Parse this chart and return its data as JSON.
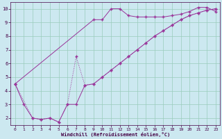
{
  "xlabel": "Windchill (Refroidissement éolien,°C)",
  "bg_color": "#cce8f0",
  "grid_color": "#99ccbb",
  "line_color": "#993399",
  "xlim": [
    -0.5,
    23.5
  ],
  "ylim": [
    1.5,
    10.5
  ],
  "xticks": [
    0,
    1,
    2,
    3,
    4,
    5,
    6,
    7,
    8,
    9,
    10,
    11,
    12,
    13,
    14,
    15,
    16,
    17,
    18,
    19,
    20,
    21,
    22,
    23
  ],
  "yticks": [
    2,
    3,
    4,
    5,
    6,
    7,
    8,
    9,
    10
  ],
  "line1_x": [
    0,
    1,
    2,
    3,
    4,
    5,
    6,
    7,
    8,
    9,
    10,
    11,
    12,
    13,
    14,
    15,
    16,
    17,
    18,
    19,
    20,
    21,
    22,
    23
  ],
  "line1_y": [
    4.5,
    3.0,
    2.0,
    1.9,
    2.0,
    1.7,
    3.0,
    3.0,
    4.4,
    4.5,
    5.0,
    5.5,
    6.0,
    6.5,
    7.0,
    7.5,
    8.0,
    8.4,
    8.8,
    9.2,
    9.5,
    9.7,
    9.9,
    10.0
  ],
  "line2_x": [
    0,
    2,
    3,
    4,
    5,
    6,
    7,
    8,
    9,
    10,
    11,
    12,
    13,
    14,
    15,
    16,
    17,
    18,
    19,
    20,
    21,
    22,
    23
  ],
  "line2_y": [
    4.5,
    2.0,
    1.9,
    2.0,
    1.7,
    3.0,
    6.5,
    4.4,
    4.5,
    5.0,
    5.5,
    6.0,
    6.5,
    7.0,
    7.5,
    8.0,
    8.4,
    8.8,
    9.2,
    9.5,
    9.7,
    9.9,
    10.0
  ],
  "line3_x": [
    0,
    9,
    10,
    11,
    12,
    13,
    14,
    15,
    16,
    17,
    18,
    19,
    20,
    21,
    22,
    23
  ],
  "line3_y": [
    4.5,
    9.2,
    9.2,
    10.0,
    10.0,
    9.5,
    9.4,
    9.4,
    9.4,
    9.4,
    9.5,
    9.6,
    9.8,
    10.1,
    10.1,
    9.8
  ]
}
